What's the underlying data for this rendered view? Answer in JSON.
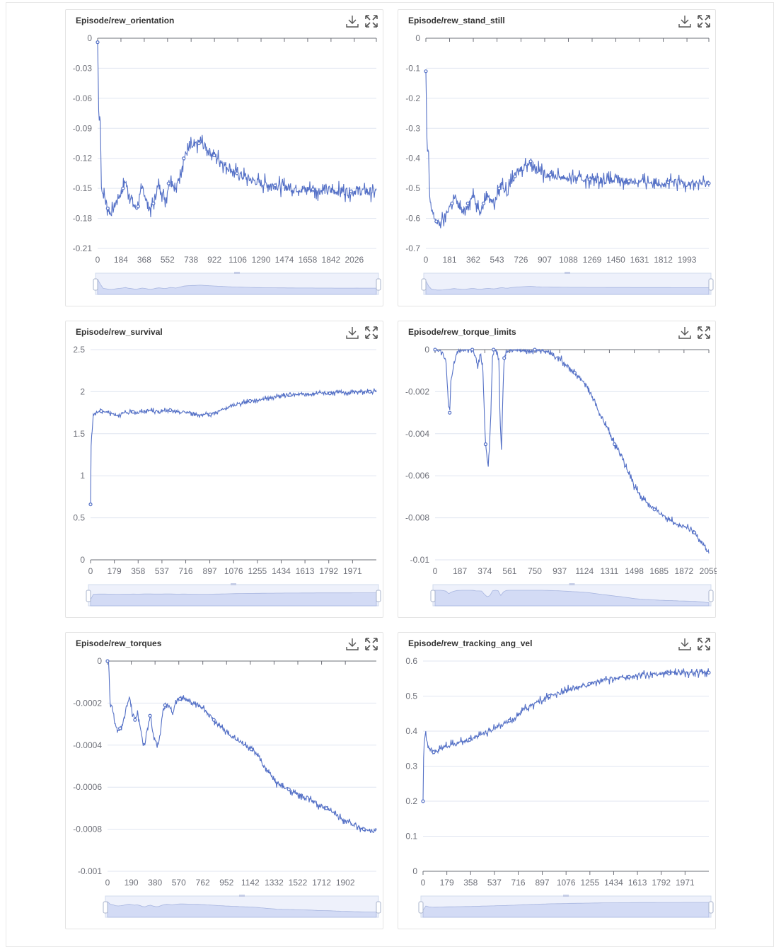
{
  "colors": {
    "line": "#5470c6",
    "grid": "#e0e6f1",
    "axis": "#6e7079",
    "slider_fill": "#d3dbf5",
    "slider_bg": "#eef1fb"
  },
  "icons": {
    "download": "download-icon",
    "fullscreen": "fullscreen-icon"
  },
  "chart_data": [
    {
      "type": "line",
      "title": "Episode/rew_orientation",
      "ylim": [
        -0.21,
        0
      ],
      "yticks": [
        "0",
        "-0.03",
        "-0.06",
        "-0.09",
        "-0.12",
        "-0.15",
        "-0.18",
        "-0.21"
      ],
      "xlim": [
        0,
        2200
      ],
      "xticks": [
        "0",
        "184",
        "368",
        "552",
        "738",
        "922",
        "1106",
        "1290",
        "1474",
        "1658",
        "1842",
        "2026"
      ],
      "series": [
        {
          "x": [
            0,
            10,
            20,
            30,
            40,
            60,
            80,
            100,
            120,
            140,
            160,
            180,
            200,
            220,
            240,
            260,
            280,
            300,
            320,
            340,
            360,
            380,
            400,
            420,
            440,
            460,
            480,
            500,
            520,
            540,
            560,
            580,
            600,
            620,
            640,
            660,
            680,
            700,
            720,
            740,
            760,
            780,
            800,
            820,
            840,
            860,
            880,
            900,
            920,
            940,
            960,
            980,
            1000,
            1050,
            1100,
            1150,
            1200,
            1250,
            1300,
            1350,
            1400,
            1450,
            1500,
            1550,
            1600,
            1650,
            1700,
            1750,
            1800,
            1850,
            1900,
            1950,
            2000,
            2050,
            2100,
            2150,
            2200
          ],
          "values": [
            -0.004,
            -0.085,
            -0.075,
            -0.148,
            -0.155,
            -0.16,
            -0.17,
            -0.175,
            -0.172,
            -0.165,
            -0.16,
            -0.155,
            -0.15,
            -0.142,
            -0.153,
            -0.158,
            -0.165,
            -0.17,
            -0.168,
            -0.155,
            -0.15,
            -0.16,
            -0.168,
            -0.17,
            -0.165,
            -0.155,
            -0.148,
            -0.15,
            -0.158,
            -0.16,
            -0.145,
            -0.138,
            -0.148,
            -0.152,
            -0.14,
            -0.13,
            -0.12,
            -0.115,
            -0.112,
            -0.108,
            -0.11,
            -0.106,
            -0.105,
            -0.104,
            -0.108,
            -0.11,
            -0.113,
            -0.115,
            -0.117,
            -0.119,
            -0.121,
            -0.123,
            -0.126,
            -0.131,
            -0.135,
            -0.138,
            -0.141,
            -0.143,
            -0.145,
            -0.146,
            -0.147,
            -0.148,
            -0.149,
            -0.15,
            -0.15,
            -0.151,
            -0.151,
            -0.152,
            -0.152,
            -0.152,
            -0.153,
            -0.153,
            -0.153,
            -0.152,
            -0.153,
            -0.153,
            -0.153
          ],
          "noise": 0.006
        }
      ]
    },
    {
      "type": "line",
      "title": "Episode/rew_stand_still",
      "ylim": [
        -0.7,
        0
      ],
      "yticks": [
        "0",
        "-0.1",
        "-0.2",
        "-0.3",
        "-0.4",
        "-0.5",
        "-0.6",
        "-0.7"
      ],
      "xlim": [
        0,
        2160
      ],
      "xticks": [
        "0",
        "181",
        "362",
        "543",
        "726",
        "907",
        "1088",
        "1269",
        "1450",
        "1631",
        "1812",
        "1993"
      ],
      "series": [
        {
          "x": [
            0,
            10,
            20,
            30,
            40,
            60,
            80,
            100,
            120,
            140,
            160,
            180,
            200,
            220,
            240,
            260,
            280,
            300,
            320,
            340,
            360,
            380,
            400,
            420,
            440,
            460,
            480,
            500,
            520,
            540,
            560,
            580,
            600,
            620,
            640,
            660,
            680,
            700,
            720,
            740,
            760,
            780,
            800,
            820,
            840,
            860,
            880,
            900,
            950,
            1000,
            1050,
            1100,
            1150,
            1200,
            1250,
            1300,
            1350,
            1400,
            1450,
            1500,
            1550,
            1600,
            1650,
            1700,
            1750,
            1800,
            1850,
            1900,
            1950,
            2000,
            2050,
            2100,
            2160
          ],
          "values": [
            -0.11,
            -0.38,
            -0.37,
            -0.55,
            -0.57,
            -0.59,
            -0.61,
            -0.62,
            -0.61,
            -0.6,
            -0.58,
            -0.56,
            -0.55,
            -0.53,
            -0.55,
            -0.56,
            -0.58,
            -0.57,
            -0.55,
            -0.54,
            -0.52,
            -0.55,
            -0.56,
            -0.57,
            -0.55,
            -0.53,
            -0.52,
            -0.54,
            -0.55,
            -0.53,
            -0.5,
            -0.48,
            -0.5,
            -0.52,
            -0.49,
            -0.47,
            -0.46,
            -0.45,
            -0.44,
            -0.43,
            -0.42,
            -0.415,
            -0.41,
            -0.42,
            -0.43,
            -0.44,
            -0.445,
            -0.45,
            -0.455,
            -0.46,
            -0.462,
            -0.465,
            -0.467,
            -0.468,
            -0.47,
            -0.471,
            -0.472,
            -0.473,
            -0.474,
            -0.475,
            -0.476,
            -0.477,
            -0.478,
            -0.478,
            -0.479,
            -0.48,
            -0.48,
            -0.481,
            -0.481,
            -0.482,
            -0.482,
            -0.483,
            -0.483
          ],
          "noise": 0.018
        }
      ]
    },
    {
      "type": "line",
      "title": "Episode/rew_survival",
      "ylim": [
        0,
        2.5
      ],
      "yticks": [
        "2.5",
        "2",
        "1.5",
        "1",
        "0.5",
        "0"
      ],
      "xlim": [
        0,
        2150
      ],
      "xticks": [
        "0",
        "179",
        "358",
        "537",
        "716",
        "897",
        "1076",
        "1255",
        "1434",
        "1613",
        "1792",
        "1971"
      ],
      "series": [
        {
          "x": [
            0,
            5,
            10,
            20,
            30,
            50,
            80,
            120,
            160,
            200,
            240,
            280,
            320,
            360,
            400,
            450,
            500,
            550,
            600,
            650,
            700,
            750,
            800,
            850,
            900,
            950,
            1000,
            1050,
            1100,
            1150,
            1200,
            1250,
            1300,
            1350,
            1400,
            1450,
            1500,
            1550,
            1600,
            1650,
            1700,
            1750,
            1800,
            1850,
            1900,
            1950,
            2000,
            2050,
            2100,
            2150
          ],
          "values": [
            0.66,
            1.5,
            1.47,
            1.72,
            1.74,
            1.76,
            1.77,
            1.76,
            1.74,
            1.72,
            1.74,
            1.75,
            1.76,
            1.75,
            1.77,
            1.78,
            1.76,
            1.77,
            1.78,
            1.75,
            1.76,
            1.75,
            1.73,
            1.72,
            1.73,
            1.76,
            1.79,
            1.82,
            1.85,
            1.87,
            1.89,
            1.9,
            1.92,
            1.93,
            1.94,
            1.95,
            1.96,
            1.96,
            1.97,
            1.97,
            1.98,
            1.98,
            1.98,
            1.99,
            1.99,
            1.99,
            2.0,
            2.0,
            2.0,
            2.0
          ],
          "noise": 0.02
        }
      ]
    },
    {
      "type": "line",
      "title": "Episode/rew_torque_limits",
      "ylim": [
        -0.01,
        0
      ],
      "yticks": [
        "0",
        "-0.002",
        "-0.004",
        "-0.006",
        "-0.008",
        "-0.01"
      ],
      "xlim": [
        0,
        2059
      ],
      "xticks": [
        "0",
        "187",
        "374",
        "561",
        "750",
        "937",
        "1124",
        "1311",
        "1498",
        "1685",
        "1872",
        "2059"
      ],
      "series": [
        {
          "x": [
            0,
            40,
            60,
            80,
            90,
            100,
            110,
            120,
            140,
            160,
            200,
            240,
            280,
            300,
            320,
            340,
            360,
            370,
            380,
            390,
            400,
            410,
            420,
            430,
            440,
            460,
            480,
            490,
            500,
            510,
            520,
            540,
            560,
            600,
            650,
            700,
            750,
            800,
            850,
            900,
            950,
            1000,
            1050,
            1100,
            1150,
            1200,
            1250,
            1300,
            1350,
            1400,
            1450,
            1500,
            1550,
            1600,
            1650,
            1700,
            1750,
            1800,
            1850,
            1900,
            1950,
            2000,
            2059
          ],
          "values": [
            0,
            0,
            -0.0002,
            -0.0005,
            -0.0015,
            -0.0025,
            -0.003,
            -0.0015,
            -0.0008,
            -0.0002,
            0,
            0,
            0,
            -0.0003,
            -0.0008,
            -0.0002,
            -0.001,
            -0.003,
            -0.0045,
            -0.005,
            -0.0055,
            -0.0045,
            -0.003,
            -0.0005,
            0,
            0,
            -0.0004,
            -0.0035,
            -0.0048,
            -0.002,
            -0.0004,
            -0.0001,
            0,
            0,
            0,
            0,
            0,
            0,
            -0.0001,
            -0.0003,
            -0.0005,
            -0.0008,
            -0.0011,
            -0.0014,
            -0.0018,
            -0.0025,
            -0.0032,
            -0.0038,
            -0.0045,
            -0.005,
            -0.0058,
            -0.0065,
            -0.007,
            -0.0073,
            -0.0076,
            -0.0078,
            -0.008,
            -0.0082,
            -0.0084,
            -0.0085,
            -0.0087,
            -0.0091,
            -0.0097
          ],
          "noise": 0.00012
        }
      ]
    },
    {
      "type": "line",
      "title": "Episode/rew_torques",
      "ylim": [
        -0.001,
        0
      ],
      "yticks": [
        "0",
        "-0.0002",
        "-0.0004",
        "-0.0006",
        "-0.0008",
        "-0.001"
      ],
      "xlim": [
        0,
        2150
      ],
      "xticks": [
        "0",
        "190",
        "380",
        "570",
        "762",
        "952",
        "1142",
        "1332",
        "1522",
        "1712",
        "1902"
      ],
      "series": [
        {
          "x": [
            0,
            10,
            20,
            40,
            60,
            80,
            100,
            120,
            140,
            160,
            180,
            200,
            220,
            240,
            260,
            280,
            300,
            320,
            340,
            360,
            380,
            400,
            420,
            440,
            460,
            480,
            500,
            520,
            540,
            560,
            580,
            600,
            650,
            700,
            750,
            800,
            850,
            900,
            950,
            1000,
            1050,
            1100,
            1150,
            1200,
            1250,
            1300,
            1350,
            1400,
            1450,
            1500,
            1550,
            1600,
            1650,
            1700,
            1750,
            1800,
            1850,
            1900,
            1950,
            2000,
            2050,
            2100,
            2150
          ],
          "values": [
            0,
            -1e-05,
            -0.0002,
            -0.00023,
            -0.0003,
            -0.00034,
            -0.00032,
            -0.0003,
            -0.00025,
            -0.0002,
            -0.00018,
            -0.00025,
            -0.00028,
            -0.00024,
            -0.0003,
            -0.00038,
            -0.0004,
            -0.00032,
            -0.00026,
            -0.00033,
            -0.00038,
            -0.0004,
            -0.00035,
            -0.00025,
            -0.00021,
            -0.0002,
            -0.00022,
            -0.00025,
            -0.00021,
            -0.00019,
            -0.00018,
            -0.00018,
            -0.00019,
            -0.0002,
            -0.00022,
            -0.00025,
            -0.00028,
            -0.00031,
            -0.00034,
            -0.00036,
            -0.00038,
            -0.0004,
            -0.00042,
            -0.00045,
            -0.0005,
            -0.00054,
            -0.00058,
            -0.0006,
            -0.00061,
            -0.00063,
            -0.00064,
            -0.00065,
            -0.00067,
            -0.00069,
            -0.0007,
            -0.00072,
            -0.00074,
            -0.00076,
            -0.00077,
            -0.00079,
            -0.0008,
            -0.00081,
            -0.00081
          ],
          "noise": 1.2e-05
        }
      ]
    },
    {
      "type": "line",
      "title": "Episode/rew_tracking_ang_vel",
      "ylim": [
        0,
        0.6
      ],
      "yticks": [
        "0.6",
        "0.5",
        "0.4",
        "0.3",
        "0.2",
        "0.1",
        "0"
      ],
      "xlim": [
        0,
        2150
      ],
      "xticks": [
        "0",
        "179",
        "358",
        "537",
        "716",
        "897",
        "1076",
        "1255",
        "1434",
        "1613",
        "1792",
        "1971"
      ],
      "series": [
        {
          "x": [
            0,
            5,
            10,
            20,
            30,
            50,
            80,
            120,
            160,
            200,
            250,
            300,
            350,
            400,
            450,
            500,
            550,
            600,
            650,
            700,
            750,
            800,
            850,
            900,
            950,
            1000,
            1050,
            1100,
            1150,
            1200,
            1250,
            1300,
            1350,
            1400,
            1450,
            1500,
            1550,
            1600,
            1650,
            1700,
            1750,
            1800,
            1850,
            1900,
            1950,
            2000,
            2050,
            2100,
            2150
          ],
          "values": [
            0.2,
            0.35,
            0.37,
            0.4,
            0.37,
            0.35,
            0.34,
            0.345,
            0.355,
            0.36,
            0.365,
            0.37,
            0.375,
            0.385,
            0.395,
            0.4,
            0.41,
            0.42,
            0.43,
            0.44,
            0.46,
            0.47,
            0.48,
            0.49,
            0.5,
            0.505,
            0.51,
            0.52,
            0.525,
            0.53,
            0.535,
            0.54,
            0.545,
            0.548,
            0.55,
            0.553,
            0.555,
            0.557,
            0.56,
            0.56,
            0.562,
            0.563,
            0.564,
            0.565,
            0.565,
            0.566,
            0.566,
            0.567,
            0.567
          ],
          "noise": 0.008
        }
      ]
    }
  ]
}
